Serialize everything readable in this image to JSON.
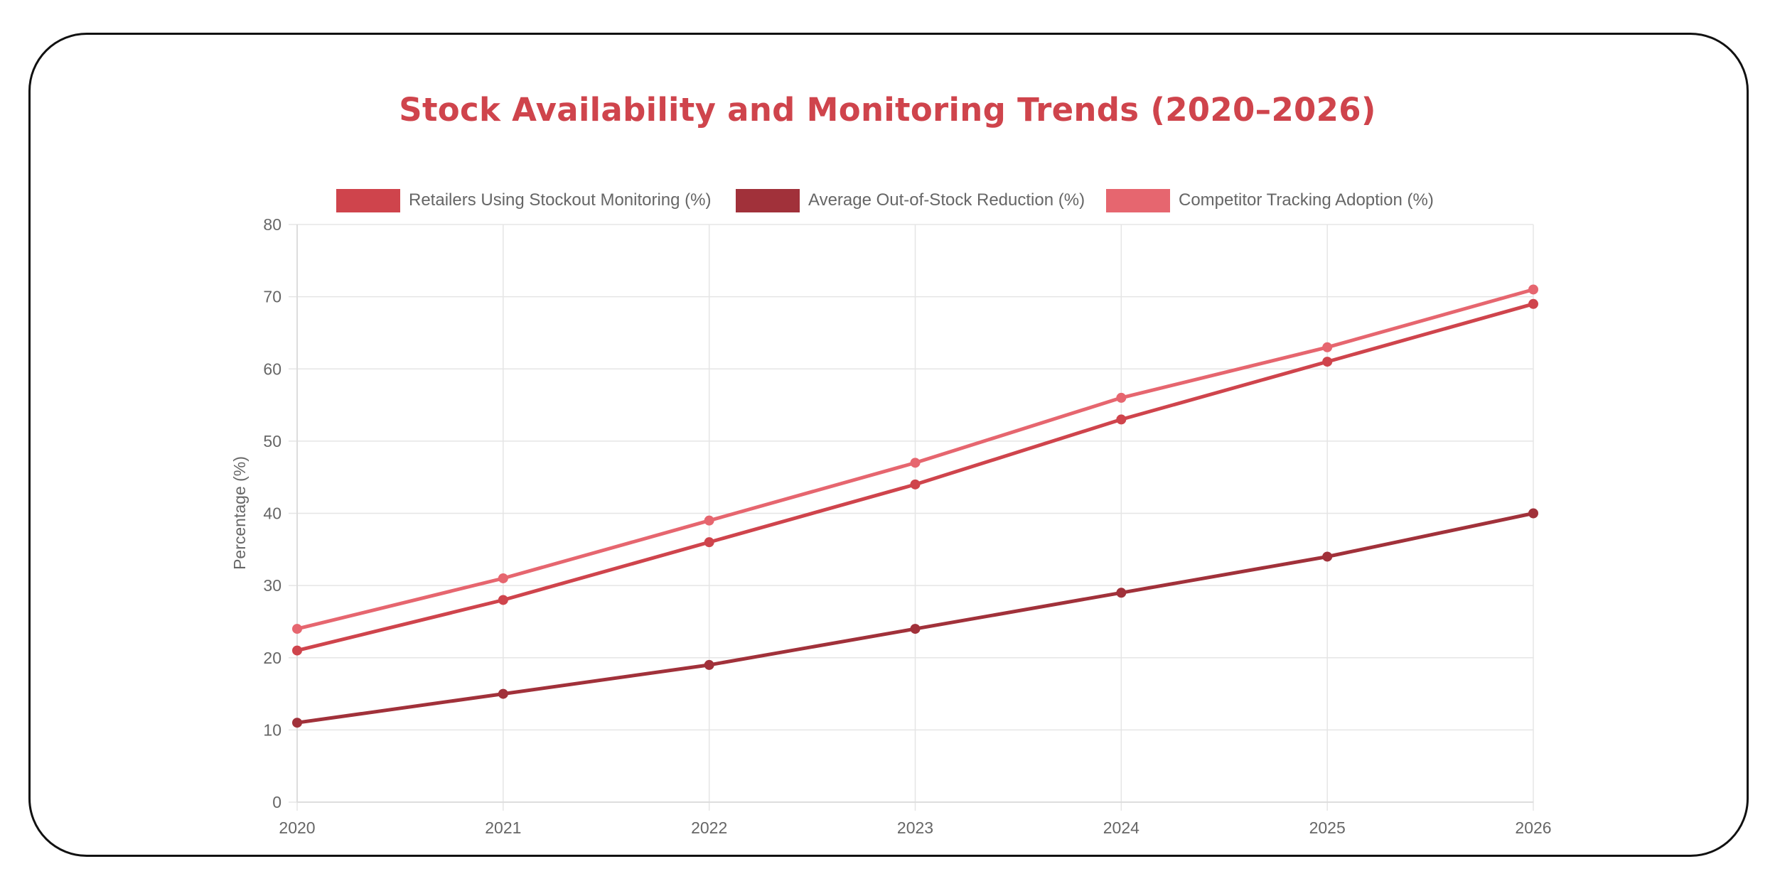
{
  "chart_data": {
    "type": "line",
    "title": "Stock Availability and Monitoring Trends (2020–2026)",
    "xlabel": "",
    "ylabel": "Percentage (%)",
    "categories": [
      "2020",
      "2021",
      "2022",
      "2023",
      "2024",
      "2025",
      "2026"
    ],
    "yticks": [
      "0",
      "10",
      "20",
      "30",
      "40",
      "50",
      "60",
      "70",
      "80"
    ],
    "ylim": [
      0,
      80
    ],
    "grid": true,
    "legend_position": "top",
    "series": [
      {
        "name": "Retailers Using Stockout Monitoring (%)",
        "color": "#cf444c",
        "values": [
          21,
          28,
          36,
          44,
          53,
          61,
          69
        ]
      },
      {
        "name": "Average Out-of-Stock Reduction (%)",
        "color": "#a1313a",
        "values": [
          11,
          15,
          19,
          24,
          29,
          34,
          40
        ]
      },
      {
        "name": "Competitor Tracking Adoption (%)",
        "color": "#e6666f",
        "values": [
          24,
          31,
          39,
          47,
          56,
          63,
          71
        ]
      }
    ],
    "title_color": "#cf444c",
    "grid_color": "#e5e5e5"
  }
}
